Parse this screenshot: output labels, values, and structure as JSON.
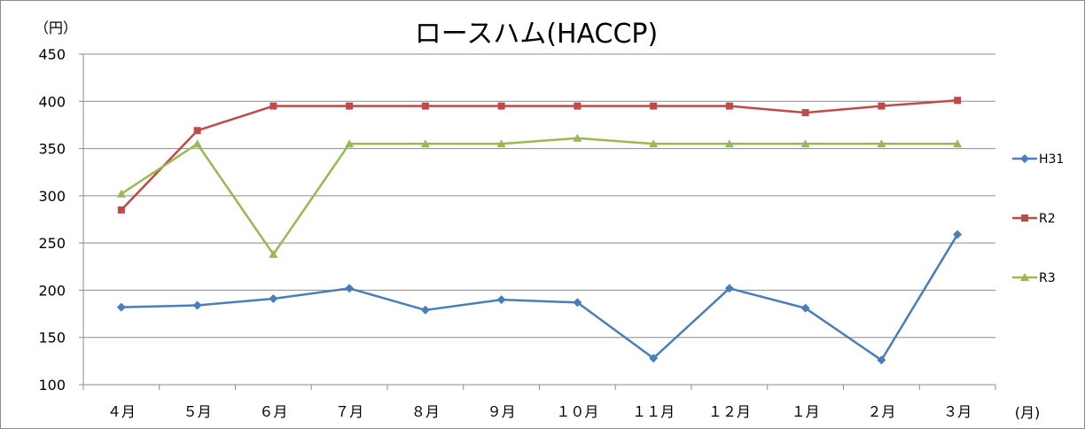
{
  "chart_data": {
    "type": "line",
    "title": "ロースハム(HACCP)",
    "ylabel": "（円）",
    "xlabel": "(月)",
    "ylim": [
      100,
      450
    ],
    "yticks": [
      100,
      150,
      200,
      250,
      300,
      350,
      400,
      450
    ],
    "categories": [
      "４月",
      "５月",
      "６月",
      "７月",
      "８月",
      "９月",
      "１０月",
      "１１月",
      "１２月",
      "１月",
      "２月",
      "３月"
    ],
    "grid": true,
    "legend_position": "right",
    "series": [
      {
        "name": "H31",
        "color": "#4a7ebb",
        "marker": "diamond",
        "values": [
          182,
          184,
          191,
          202,
          179,
          190,
          187,
          128,
          202,
          181,
          126,
          259
        ]
      },
      {
        "name": "R2",
        "color": "#be4b48",
        "marker": "square",
        "values": [
          285,
          369,
          395,
          395,
          395,
          395,
          395,
          395,
          395,
          388,
          395,
          401
        ]
      },
      {
        "name": "R3",
        "color": "#98b954",
        "marker": "triangle",
        "values": [
          302,
          355,
          238,
          355,
          355,
          355,
          361,
          355,
          355,
          355,
          355,
          355
        ]
      }
    ]
  }
}
